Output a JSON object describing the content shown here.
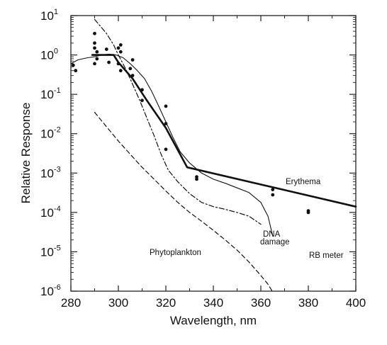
{
  "chart_data": {
    "type": "line",
    "title": "",
    "xlabel": "Wavelength, nm",
    "ylabel": "Relative Response",
    "xlim": [
      280,
      400
    ],
    "ylim_log10": [
      -6,
      1
    ],
    "y_scale": "log",
    "x_ticks": [
      280,
      300,
      320,
      340,
      360,
      380,
      400
    ],
    "y_ticks": [
      {
        "base": "10",
        "exp": "1",
        "value": 10
      },
      {
        "base": "10",
        "exp": "0",
        "value": 1
      },
      {
        "base": "10",
        "exp": "-1",
        "value": 0.1
      },
      {
        "base": "10",
        "exp": "-2",
        "value": 0.01
      },
      {
        "base": "10",
        "exp": "-3",
        "value": 0.001
      },
      {
        "base": "10",
        "exp": "-4",
        "value": 0.0001
      },
      {
        "base": "10",
        "exp": "-5",
        "value": 1e-05
      },
      {
        "base": "10",
        "exp": "-6",
        "value": 1e-06
      }
    ],
    "series": [
      {
        "name": "Erythema",
        "style": "solid-thick",
        "color": "#111111",
        "x": [
          289,
          298,
          300,
          306,
          312,
          320,
          329,
          400
        ],
        "y": [
          1.0,
          1.0,
          0.65,
          0.25,
          0.07,
          0.014,
          0.0014,
          0.00014
        ]
      },
      {
        "name": "RB meter",
        "style": "solid-thin",
        "color": "#111111",
        "x": [
          280,
          283,
          287,
          290,
          293,
          296,
          299,
          302,
          305,
          308,
          311,
          314,
          317,
          320,
          323,
          326,
          330,
          335,
          340,
          345,
          350,
          355,
          360,
          363,
          365
        ],
        "y": [
          0.6,
          0.75,
          0.85,
          0.9,
          1.0,
          1.05,
          1.0,
          0.85,
          0.6,
          0.4,
          0.25,
          0.12,
          0.05,
          0.02,
          0.008,
          0.0035,
          0.0018,
          0.001,
          0.0007,
          0.00055,
          0.00042,
          0.00032,
          0.00018,
          8e-05,
          2.5e-05
        ]
      },
      {
        "name": "DNA damage",
        "style": "dash-dot",
        "color": "#111111",
        "x": [
          290,
          295,
          298,
          300,
          303,
          306,
          309,
          312,
          315,
          318,
          321,
          325,
          330,
          335,
          340,
          345,
          350,
          355,
          360
        ],
        "y": [
          8,
          3.5,
          1.8,
          1.0,
          0.45,
          0.18,
          0.07,
          0.025,
          0.009,
          0.003,
          0.0012,
          0.0006,
          0.0003,
          0.00018,
          0.00014,
          0.00012,
          0.0001,
          8e-05,
          5e-05
        ]
      },
      {
        "name": "Phytoplankton",
        "style": "dashed",
        "color": "#111111",
        "x": [
          290,
          295,
          300,
          305,
          310,
          315,
          320,
          325,
          330,
          335,
          340,
          345,
          350,
          355,
          360,
          363,
          365
        ],
        "y": [
          0.035,
          0.015,
          0.0065,
          0.003,
          0.0014,
          0.0007,
          0.00035,
          0.00018,
          0.0001,
          6e-05,
          3.5e-05,
          2e-05,
          1.1e-05,
          5.5e-06,
          2.5e-06,
          1.5e-06,
          9.5e-07
        ]
      }
    ],
    "points": {
      "x": [
        281,
        282,
        290,
        290,
        290,
        290,
        291,
        291,
        295,
        296,
        300,
        300,
        301,
        301,
        301,
        305,
        306,
        306,
        310,
        310,
        320,
        320,
        320,
        333,
        333,
        365,
        365,
        380,
        380
      ],
      "y": [
        0.55,
        0.4,
        3.5,
        2.0,
        1.5,
        0.6,
        1.2,
        0.8,
        1.4,
        0.65,
        1.5,
        0.6,
        0.4,
        1.2,
        1.8,
        0.45,
        0.3,
        0.75,
        0.13,
        0.07,
        0.05,
        0.018,
        0.004,
        0.0008,
        0.0007,
        0.00038,
        0.00028,
        0.00011,
        0.0001
      ]
    },
    "labels": {
      "erythema": "Erythema",
      "dna_line1": "DNA",
      "dna_line2": "damage",
      "phytoplankton": "Phytoplankton",
      "rb_meter": "RB meter"
    }
  }
}
